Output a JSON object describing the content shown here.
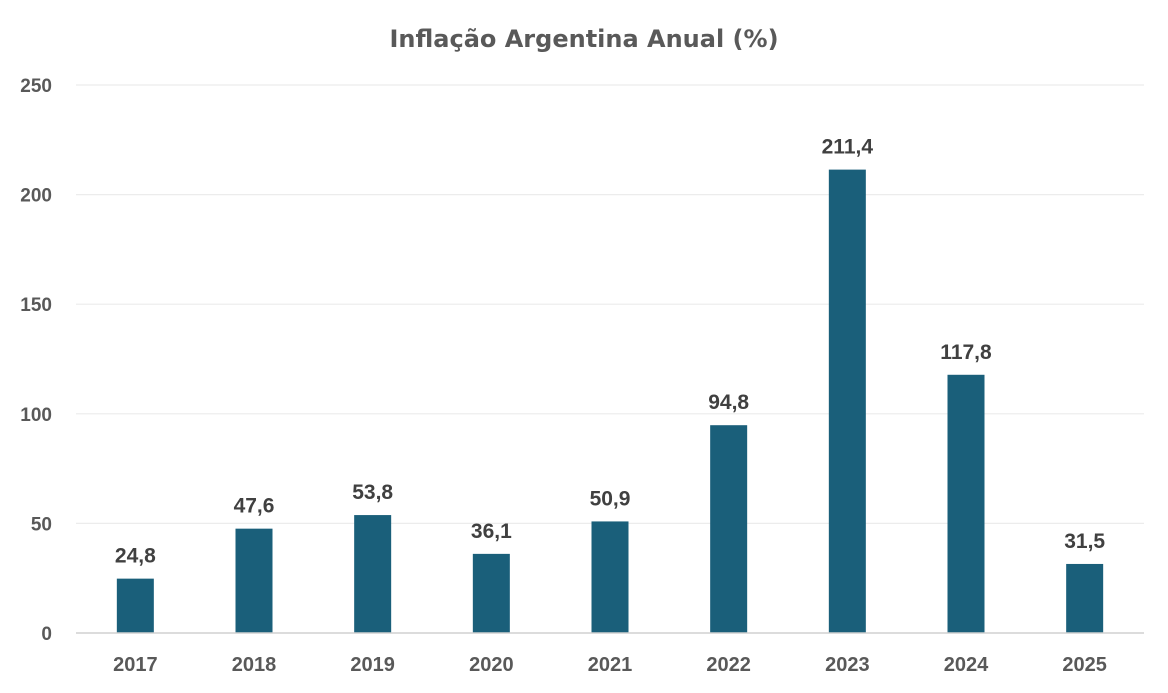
{
  "chart_data": {
    "type": "bar",
    "title": "Inflação Argentina Anual (%)",
    "xlabel": "",
    "ylabel": "",
    "categories": [
      "2017",
      "2018",
      "2019",
      "2020",
      "2021",
      "2022",
      "2023",
      "2024",
      "2025"
    ],
    "values": [
      24.8,
      47.6,
      53.8,
      36.1,
      50.9,
      94.8,
      211.4,
      117.8,
      31.5
    ],
    "data_labels": [
      "24,8",
      "47,6",
      "53,8",
      "36,1",
      "50,9",
      "94,8",
      "211,4",
      "117,8",
      "31,5"
    ],
    "ylim": [
      0,
      250
    ],
    "yticks": [
      0,
      50,
      100,
      150,
      200,
      250
    ],
    "grid": true,
    "legend": "none",
    "colors": {
      "bar": "#1a5f7a",
      "text": "#595959",
      "label": "#404040",
      "grid": "#ececec"
    }
  }
}
